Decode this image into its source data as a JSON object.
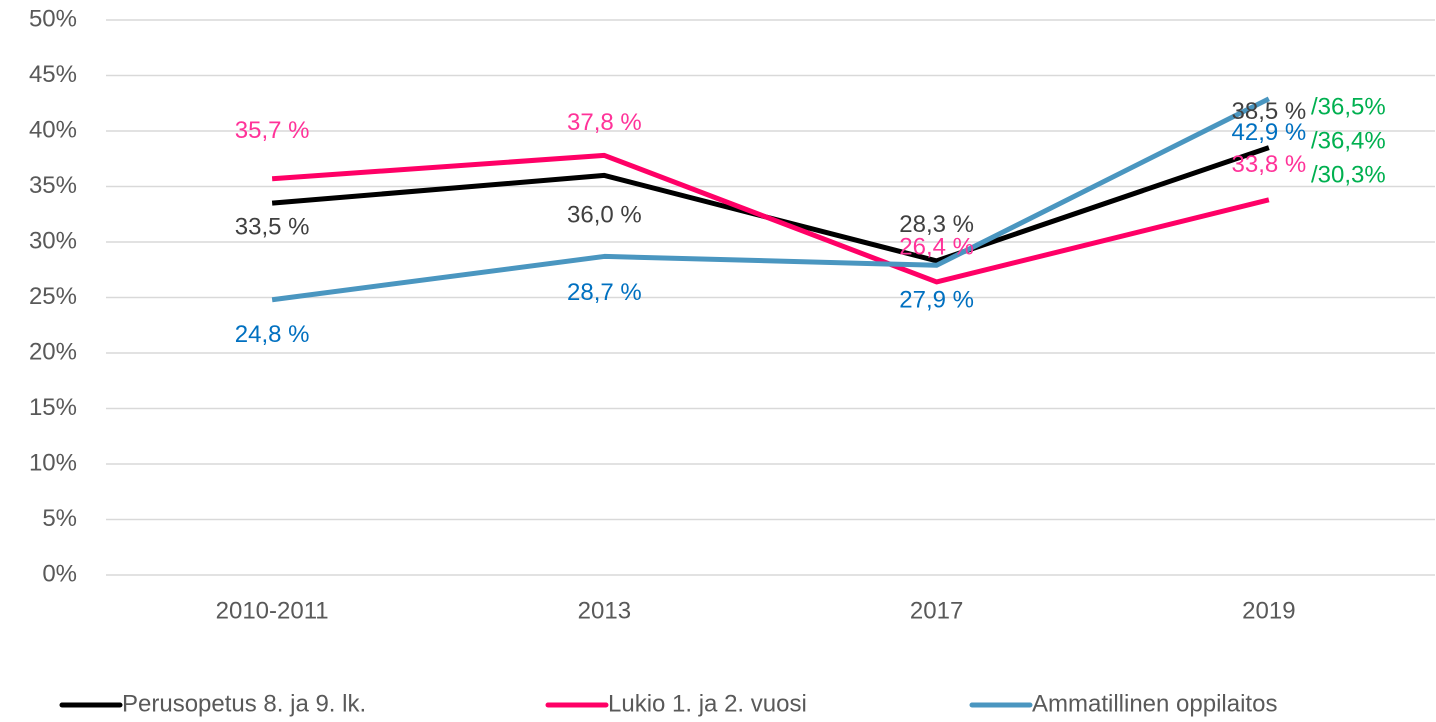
{
  "chart_data": {
    "type": "line",
    "categories": [
      "2010-2011",
      "2013",
      "2017",
      "2019"
    ],
    "series": [
      {
        "name": "Perusopetus 8. ja 9. lk.",
        "color": "#000000",
        "label_color": "#404040",
        "values": [
          33.5,
          36.0,
          28.3,
          38.5
        ],
        "value_labels": [
          "33,5 %",
          "36,0 %",
          "28,3 %",
          "38,5 %"
        ]
      },
      {
        "name": "Lukio 1. ja 2. vuosi",
        "color": "#ff0066",
        "label_color": "#ff3399",
        "values": [
          35.7,
          37.8,
          26.4,
          33.8
        ],
        "value_labels": [
          "35,7 %",
          "37,8 %",
          "26,4 %",
          "33,8 %"
        ]
      },
      {
        "name": "Ammatillinen oppilaitos",
        "color": "#4a96c0",
        "label_color": "#0070c0",
        "values": [
          24.8,
          28.7,
          27.9,
          42.9
        ],
        "value_labels": [
          "24,8 %",
          "28,7 %",
          "27,9 %",
          "42,9 %"
        ]
      }
    ],
    "annotations": [
      "/36,5%",
      "/36,4%",
      "/30,3%"
    ],
    "annotation_color": "#00b050",
    "ylim": [
      0,
      50
    ],
    "yticks": [
      {
        "value": 0,
        "label": "0%"
      },
      {
        "value": 5,
        "label": "5%"
      },
      {
        "value": 10,
        "label": "10%"
      },
      {
        "value": 15,
        "label": "15%"
      },
      {
        "value": 20,
        "label": "20%"
      },
      {
        "value": 25,
        "label": "25%"
      },
      {
        "value": 30,
        "label": "30%"
      },
      {
        "value": 35,
        "label": "35%"
      },
      {
        "value": 40,
        "label": "40%"
      },
      {
        "value": 45,
        "label": "45%"
      },
      {
        "value": 50,
        "label": "50%"
      }
    ],
    "grid": true,
    "legend": "bottom"
  }
}
